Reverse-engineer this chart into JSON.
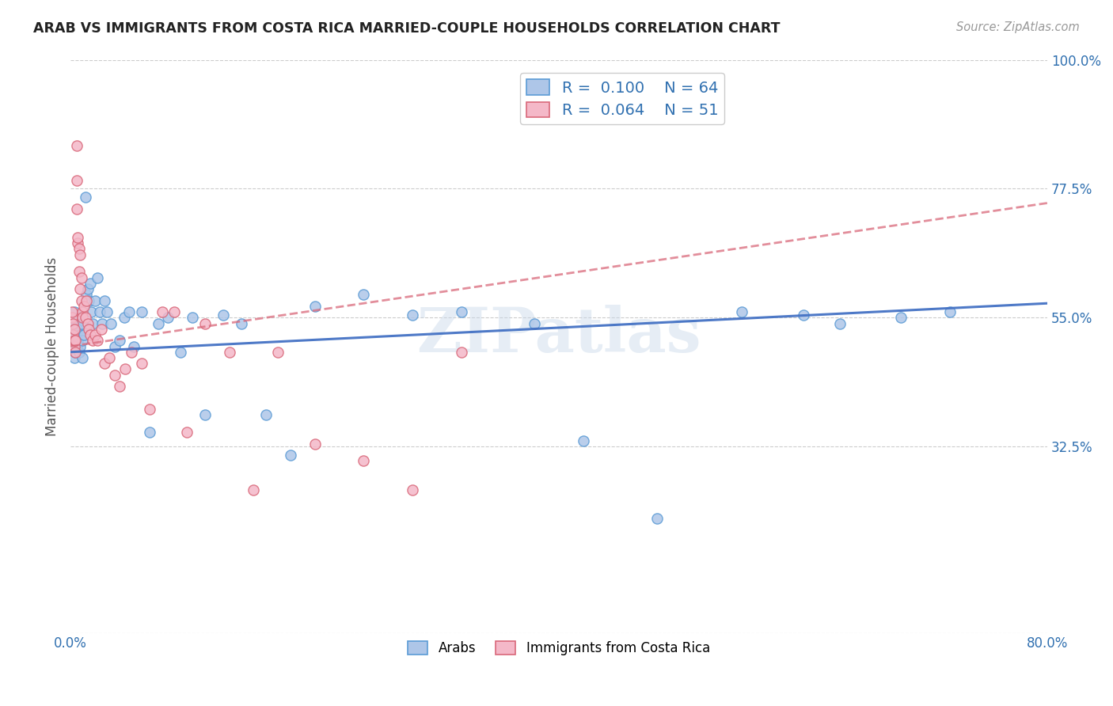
{
  "title": "ARAB VS IMMIGRANTS FROM COSTA RICA MARRIED-COUPLE HOUSEHOLDS CORRELATION CHART",
  "source": "Source: ZipAtlas.com",
  "ylabel": "Married-couple Households",
  "xlim": [
    0.0,
    0.8
  ],
  "ylim": [
    0.0,
    1.0
  ],
  "xticks": [
    0.0,
    0.1,
    0.2,
    0.3,
    0.4,
    0.5,
    0.6,
    0.7,
    0.8
  ],
  "xticklabels": [
    "0.0%",
    "",
    "",
    "",
    "",
    "",
    "",
    "",
    "80.0%"
  ],
  "yticks": [
    0.0,
    0.325,
    0.55,
    0.775,
    1.0
  ],
  "yticklabels": [
    "",
    "32.5%",
    "55.0%",
    "77.5%",
    "100.0%"
  ],
  "arab_color": "#aec6e8",
  "arab_edge_color": "#5b9bd5",
  "costa_rica_color": "#f4b8c8",
  "costa_rica_edge_color": "#d9687a",
  "trend_arab_color": "#4472c4",
  "trend_cr_color": "#d9687a",
  "legend_R_arab": "0.100",
  "legend_N_arab": "64",
  "legend_R_cr": "0.064",
  "legend_N_cr": "51",
  "watermark": "ZIPatlas",
  "arab_points_x": [
    0.001,
    0.002,
    0.002,
    0.003,
    0.003,
    0.003,
    0.004,
    0.004,
    0.004,
    0.005,
    0.005,
    0.005,
    0.006,
    0.006,
    0.007,
    0.007,
    0.008,
    0.008,
    0.009,
    0.01,
    0.01,
    0.011,
    0.012,
    0.013,
    0.014,
    0.015,
    0.016,
    0.017,
    0.018,
    0.02,
    0.022,
    0.024,
    0.026,
    0.028,
    0.03,
    0.033,
    0.036,
    0.04,
    0.044,
    0.048,
    0.052,
    0.058,
    0.065,
    0.072,
    0.08,
    0.09,
    0.1,
    0.11,
    0.125,
    0.14,
    0.16,
    0.18,
    0.2,
    0.24,
    0.28,
    0.32,
    0.38,
    0.42,
    0.48,
    0.55,
    0.6,
    0.63,
    0.68,
    0.72
  ],
  "arab_points_y": [
    0.51,
    0.5,
    0.54,
    0.52,
    0.48,
    0.56,
    0.53,
    0.51,
    0.49,
    0.52,
    0.5,
    0.54,
    0.51,
    0.53,
    0.49,
    0.55,
    0.52,
    0.5,
    0.54,
    0.51,
    0.48,
    0.52,
    0.76,
    0.59,
    0.6,
    0.58,
    0.61,
    0.56,
    0.54,
    0.58,
    0.62,
    0.56,
    0.54,
    0.58,
    0.56,
    0.54,
    0.5,
    0.51,
    0.55,
    0.56,
    0.5,
    0.56,
    0.35,
    0.54,
    0.55,
    0.49,
    0.55,
    0.38,
    0.555,
    0.54,
    0.38,
    0.31,
    0.57,
    0.59,
    0.555,
    0.56,
    0.54,
    0.335,
    0.2,
    0.56,
    0.555,
    0.54,
    0.55,
    0.56
  ],
  "cr_points_x": [
    0.001,
    0.001,
    0.002,
    0.002,
    0.003,
    0.003,
    0.003,
    0.004,
    0.004,
    0.005,
    0.005,
    0.005,
    0.006,
    0.006,
    0.007,
    0.007,
    0.008,
    0.008,
    0.009,
    0.009,
    0.01,
    0.01,
    0.011,
    0.012,
    0.013,
    0.014,
    0.015,
    0.016,
    0.018,
    0.02,
    0.022,
    0.025,
    0.028,
    0.032,
    0.036,
    0.04,
    0.045,
    0.05,
    0.058,
    0.065,
    0.075,
    0.085,
    0.095,
    0.11,
    0.13,
    0.15,
    0.17,
    0.2,
    0.24,
    0.28,
    0.32
  ],
  "cr_points_y": [
    0.55,
    0.56,
    0.52,
    0.54,
    0.5,
    0.51,
    0.53,
    0.49,
    0.51,
    0.85,
    0.79,
    0.74,
    0.68,
    0.69,
    0.67,
    0.63,
    0.66,
    0.6,
    0.58,
    0.62,
    0.56,
    0.55,
    0.57,
    0.55,
    0.58,
    0.54,
    0.53,
    0.52,
    0.51,
    0.52,
    0.51,
    0.53,
    0.47,
    0.48,
    0.45,
    0.43,
    0.46,
    0.49,
    0.47,
    0.39,
    0.56,
    0.56,
    0.35,
    0.54,
    0.49,
    0.25,
    0.49,
    0.33,
    0.3,
    0.25,
    0.49
  ]
}
